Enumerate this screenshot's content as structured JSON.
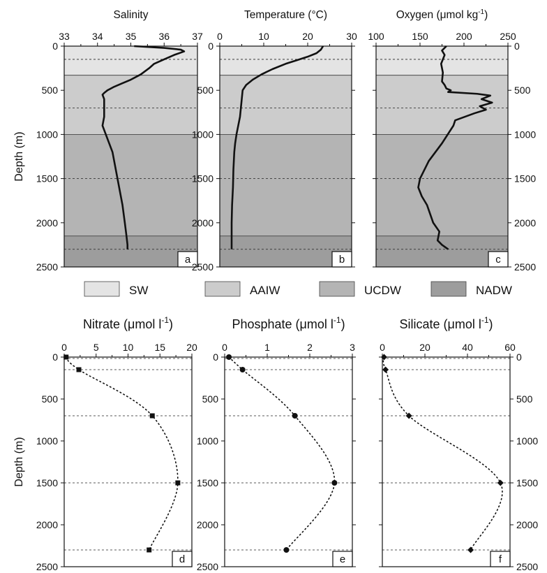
{
  "figure": {
    "depth_axis_label": "Depth (m)",
    "legend": [
      {
        "label": "SW",
        "color": "#e4e4e4"
      },
      {
        "label": "AAIW",
        "color": "#cccccc"
      },
      {
        "label": "UCDW",
        "color": "#b4b4b4"
      },
      {
        "label": "NADW",
        "color": "#9d9d9d"
      }
    ],
    "water_masses": [
      {
        "name": "SW",
        "from": 0,
        "to": 330
      },
      {
        "name": "AAIW",
        "from": 330,
        "to": 1000
      },
      {
        "name": "UCDW",
        "from": 1000,
        "to": 2150
      },
      {
        "name": "NADW",
        "from": 2150,
        "to": 2500
      }
    ],
    "sampling_depths": [
      0,
      150,
      700,
      1500,
      2300
    ]
  },
  "chart_data": [
    {
      "id": "a",
      "type": "line",
      "title": "Salinity",
      "xlim": [
        33,
        37
      ],
      "xticks": [
        33,
        34,
        35,
        36,
        37
      ],
      "ylim": [
        0,
        2500
      ],
      "yticks": [
        0,
        500,
        1000,
        1500,
        2000,
        2500
      ],
      "y_side": "left",
      "series": [
        {
          "x": [
            35.1,
            36.0,
            36.5,
            36.6,
            36.3,
            36.0,
            35.7,
            35.55,
            35.3,
            35.0,
            34.75,
            34.5,
            34.3,
            34.2,
            34.15,
            34.2,
            34.2,
            34.2,
            34.15,
            34.25,
            34.35,
            34.45,
            34.55,
            34.65,
            34.75,
            34.82,
            34.87,
            34.9,
            34.9
          ],
          "y": [
            0,
            20,
            40,
            60,
            100,
            150,
            200,
            250,
            320,
            380,
            420,
            460,
            500,
            530,
            550,
            600,
            700,
            800,
            900,
            1000,
            1100,
            1200,
            1400,
            1600,
            1800,
            2000,
            2150,
            2250,
            2300
          ]
        }
      ]
    },
    {
      "id": "b",
      "type": "line",
      "title": "Temperature (°C)",
      "xlim": [
        0,
        30
      ],
      "xticks": [
        0,
        10,
        20,
        30
      ],
      "ylim": [
        0,
        2500
      ],
      "yticks": [
        0,
        500,
        1000,
        1500,
        2000,
        2500
      ],
      "y_side": "left",
      "series": [
        {
          "x": [
            23.5,
            23.0,
            22.0,
            20.0,
            17.5,
            15.0,
            12.0,
            9.5,
            7.5,
            6.0,
            5.2,
            5.0,
            4.8,
            4.6,
            4.2,
            3.8,
            3.5,
            3.3,
            3.1,
            3.0,
            2.8,
            2.7,
            2.7
          ],
          "y": [
            0,
            40,
            80,
            120,
            160,
            200,
            260,
            320,
            380,
            440,
            500,
            600,
            700,
            800,
            900,
            1000,
            1100,
            1200,
            1400,
            1600,
            1800,
            2000,
            2300
          ]
        }
      ]
    },
    {
      "id": "c",
      "type": "line",
      "title": "Oxygen (μmol kg",
      "title_sup": "-1",
      "title_end": ")",
      "xlim": [
        100,
        250
      ],
      "xticks": [
        100,
        150,
        200,
        250
      ],
      "ylim": [
        0,
        2500
      ],
      "yticks": [
        0,
        500,
        1000,
        1500,
        2000,
        2500
      ],
      "y_side": "right",
      "series": [
        {
          "x": [
            180,
            175,
            178,
            174,
            176,
            175,
            178,
            180,
            185,
            182,
            215,
            230,
            220,
            232,
            218,
            225,
            212,
            190,
            188,
            175,
            160,
            150,
            148,
            152,
            158,
            165,
            172,
            170,
            175,
            182
          ],
          "y": [
            0,
            50,
            100,
            200,
            300,
            400,
            440,
            480,
            500,
            520,
            540,
            560,
            600,
            640,
            680,
            720,
            760,
            840,
            900,
            1100,
            1300,
            1500,
            1600,
            1700,
            1800,
            2000,
            2100,
            2200,
            2250,
            2300
          ]
        }
      ]
    },
    {
      "id": "d",
      "type": "scatter",
      "title": "Nitrate (μmol l",
      "title_sup": "-1",
      "title_end": ")",
      "xlim": [
        0,
        20
      ],
      "xticks": [
        0,
        5,
        10,
        15,
        20
      ],
      "ylim": [
        0,
        2500
      ],
      "yticks": [
        0,
        500,
        1000,
        1500,
        2000,
        2500
      ],
      "y_side": "left",
      "marker": "square",
      "series": [
        {
          "x": [
            0.3,
            2.3,
            13.8,
            17.8,
            13.3
          ],
          "y": [
            0,
            150,
            700,
            1500,
            2300
          ]
        }
      ]
    },
    {
      "id": "e",
      "type": "scatter",
      "title": "Phosphate (μmol l",
      "title_sup": "-1",
      "title_end": ")",
      "xlim": [
        0,
        3
      ],
      "xticks": [
        0,
        1,
        2,
        3
      ],
      "ylim": [
        0,
        2500
      ],
      "yticks": [
        0,
        500,
        1000,
        1500,
        2000,
        2500
      ],
      "y_side": "left",
      "marker": "circle",
      "series": [
        {
          "x": [
            0.1,
            0.42,
            1.65,
            2.58,
            1.45
          ],
          "y": [
            0,
            150,
            700,
            1500,
            2300
          ]
        }
      ]
    },
    {
      "id": "f",
      "type": "scatter",
      "title": "Silicate (μmol l",
      "title_sup": "-1",
      "title_end": ")",
      "xlim": [
        0,
        60
      ],
      "xticks": [
        0,
        20,
        40,
        60
      ],
      "ylim": [
        0,
        2500
      ],
      "yticks": [
        0,
        500,
        1000,
        1500,
        2000,
        2500
      ],
      "y_side": "right",
      "marker": "diamond",
      "series": [
        {
          "x": [
            0.8,
            1.5,
            12.5,
            55.5,
            41.5
          ],
          "y": [
            0,
            150,
            700,
            1500,
            2300
          ]
        }
      ]
    }
  ]
}
